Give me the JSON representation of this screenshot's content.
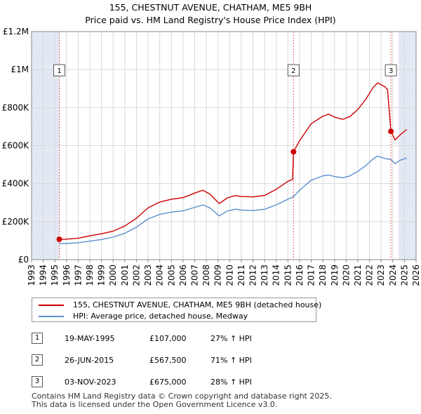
{
  "title": {
    "line1": "155, CHESTNUT AVENUE, CHATHAM, ME5 9BH",
    "line2": "Price paid vs. HM Land Registry's House Price Index (HPI)"
  },
  "colors": {
    "price_line": "#cc0000",
    "hpi_line": "#5b8ecf",
    "grid": "#d9d9d9",
    "shade": "#e8eef7",
    "marker_border": "#cc0000"
  },
  "chart_data": {
    "type": "line",
    "xlim": [
      1993,
      2026
    ],
    "ylim": [
      0,
      1200000
    ],
    "x_ticks": [
      "1993",
      "1994",
      "1995",
      "1996",
      "1997",
      "1998",
      "1999",
      "2000",
      "2001",
      "2002",
      "2003",
      "2004",
      "2005",
      "2006",
      "2007",
      "2008",
      "2009",
      "2010",
      "2011",
      "2012",
      "2013",
      "2014",
      "2015",
      "2016",
      "2017",
      "2018",
      "2019",
      "2020",
      "2021",
      "2022",
      "2023",
      "2024",
      "2025",
      "2026"
    ],
    "y_ticks": [
      {
        "value": 0,
        "label": "£0"
      },
      {
        "value": 200000,
        "label": "£200K"
      },
      {
        "value": 400000,
        "label": "£400K"
      },
      {
        "value": 600000,
        "label": "£600K"
      },
      {
        "value": 800000,
        "label": "£800K"
      },
      {
        "value": 1000000,
        "label": "£1M"
      },
      {
        "value": 1200000,
        "label": "£1.2M"
      }
    ],
    "shaded_ranges": [
      [
        1993,
        1995.38
      ],
      [
        2024.5,
        2026
      ]
    ],
    "series": [
      {
        "name": "155, CHESTNUT AVENUE, CHATHAM, ME5 9BH (detached house)",
        "color": "#cc0000",
        "points": [
          [
            1995.38,
            107000
          ],
          [
            1996,
            108000
          ],
          [
            1997,
            113000
          ],
          [
            1998,
            125000
          ],
          [
            1999,
            136000
          ],
          [
            2000,
            150000
          ],
          [
            2001,
            177000
          ],
          [
            2002,
            218000
          ],
          [
            2003,
            273000
          ],
          [
            2004,
            303000
          ],
          [
            2005,
            318000
          ],
          [
            2006,
            326000
          ],
          [
            2007,
            350000
          ],
          [
            2007.7,
            365000
          ],
          [
            2008.3,
            345000
          ],
          [
            2009.1,
            295000
          ],
          [
            2009.8,
            325000
          ],
          [
            2010.5,
            337000
          ],
          [
            2011,
            332000
          ],
          [
            2012,
            330000
          ],
          [
            2013,
            338000
          ],
          [
            2014,
            370000
          ],
          [
            2015.0,
            412000
          ],
          [
            2015.4,
            422000
          ],
          [
            2015.48,
            567500
          ],
          [
            2016,
            625000
          ],
          [
            2017,
            715000
          ],
          [
            2018,
            755000
          ],
          [
            2018.5,
            765000
          ],
          [
            2019,
            750000
          ],
          [
            2019.7,
            738000
          ],
          [
            2020.3,
            752000
          ],
          [
            2021,
            790000
          ],
          [
            2021.7,
            845000
          ],
          [
            2022.3,
            905000
          ],
          [
            2022.7,
            930000
          ],
          [
            2023.0,
            920000
          ],
          [
            2023.3,
            910000
          ],
          [
            2023.55,
            895000
          ],
          [
            2023.84,
            675000
          ],
          [
            2024.2,
            630000
          ],
          [
            2024.6,
            655000
          ],
          [
            2025.2,
            685000
          ]
        ]
      },
      {
        "name": "HPI: Average price, detached house, Medway",
        "color": "#5b8ecf",
        "points": [
          [
            1995.38,
            84000
          ],
          [
            1996,
            85000
          ],
          [
            1997,
            89000
          ],
          [
            1998,
            97000
          ],
          [
            1999,
            106000
          ],
          [
            2000,
            118000
          ],
          [
            2001,
            139000
          ],
          [
            2002,
            171000
          ],
          [
            2003,
            214000
          ],
          [
            2004,
            238000
          ],
          [
            2005,
            250000
          ],
          [
            2006,
            257000
          ],
          [
            2007,
            275000
          ],
          [
            2007.7,
            288000
          ],
          [
            2008.3,
            273000
          ],
          [
            2009.1,
            230000
          ],
          [
            2009.8,
            256000
          ],
          [
            2010.5,
            265000
          ],
          [
            2011,
            261000
          ],
          [
            2012,
            258000
          ],
          [
            2013,
            265000
          ],
          [
            2014,
            288000
          ],
          [
            2015,
            318000
          ],
          [
            2015.48,
            331000
          ],
          [
            2016,
            365000
          ],
          [
            2017,
            418000
          ],
          [
            2018,
            441000
          ],
          [
            2018.5,
            445000
          ],
          [
            2019,
            437000
          ],
          [
            2019.7,
            431000
          ],
          [
            2020.3,
            440000
          ],
          [
            2021,
            465000
          ],
          [
            2021.7,
            495000
          ],
          [
            2022.3,
            530000
          ],
          [
            2022.7,
            545000
          ],
          [
            2023.0,
            538000
          ],
          [
            2023.5,
            530000
          ],
          [
            2023.84,
            527000
          ],
          [
            2024.2,
            505000
          ],
          [
            2024.6,
            522000
          ],
          [
            2025.2,
            535000
          ]
        ]
      }
    ],
    "markers": [
      {
        "label": "1",
        "x": 1995.38,
        "y": 107000,
        "box_y": 1000000
      },
      {
        "label": "2",
        "x": 2015.48,
        "y": 567500,
        "box_y": 1000000
      },
      {
        "label": "3",
        "x": 2023.84,
        "y": 675000,
        "box_y": 1000000
      }
    ]
  },
  "legend": {
    "price_label": "155, CHESTNUT AVENUE, CHATHAM, ME5 9BH (detached house)",
    "hpi_label": "HPI: Average price, detached house, Medway"
  },
  "transactions": [
    {
      "num": "1",
      "date": "19-MAY-1995",
      "price": "£107,000",
      "hpi": "27% ↑ HPI"
    },
    {
      "num": "2",
      "date": "26-JUN-2015",
      "price": "£567,500",
      "hpi": "71% ↑ HPI"
    },
    {
      "num": "3",
      "date": "03-NOV-2023",
      "price": "£675,000",
      "hpi": "28% ↑ HPI"
    }
  ],
  "footer": {
    "line1": "Contains HM Land Registry data © Crown copyright and database right 2025.",
    "line2": "This data is licensed under the Open Government Licence v3.0."
  }
}
